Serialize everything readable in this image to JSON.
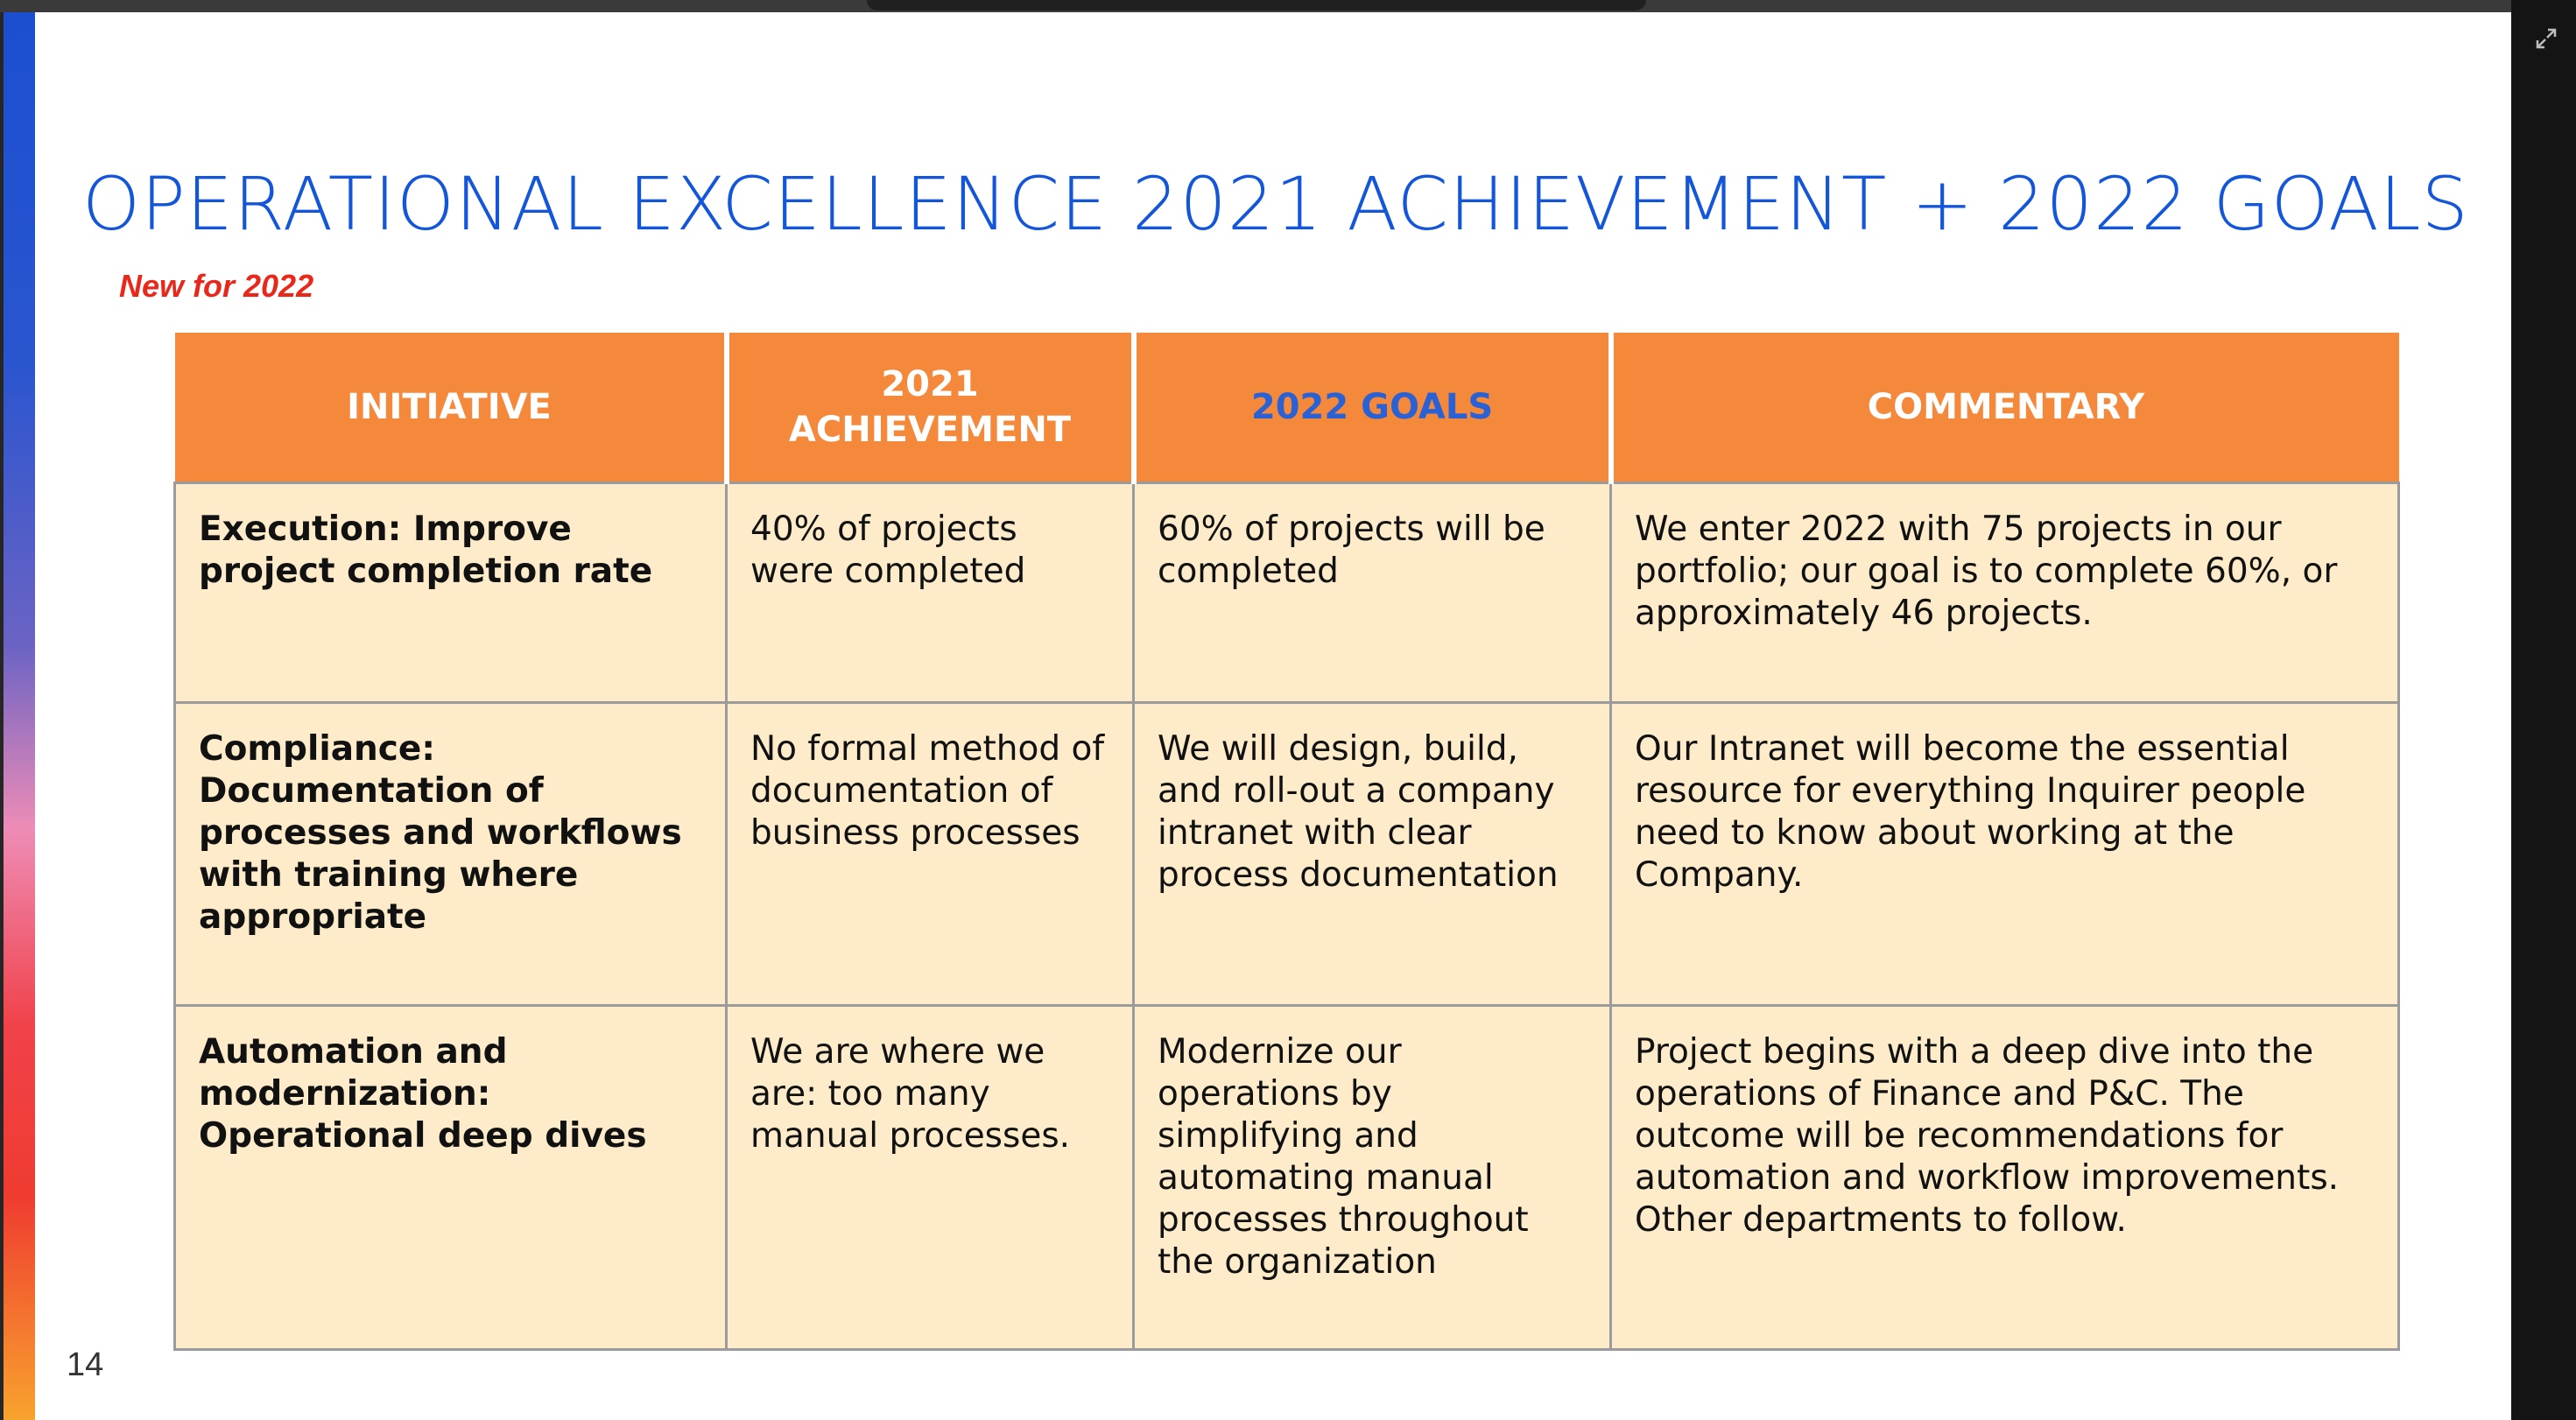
{
  "slide": {
    "title": "OPERATIONAL EXCELLENCE 2021 ACHIEVEMENT + 2022 GOALS",
    "note": "New for 2022",
    "page_number": "14"
  },
  "table": {
    "headers": [
      "INITIATIVE",
      "2021 ACHIEVEMENT",
      "2022 GOALS",
      "COMMENTARY"
    ],
    "rows": [
      {
        "initiative": "Execution: Improve project completion rate",
        "achievement_2021": "40% of projects were completed",
        "goals_2022": "60% of projects will be completed",
        "commentary": "We enter 2022 with 75 projects in our portfolio; our goal is to complete 60%, or approximately 46 projects."
      },
      {
        "initiative": "Compliance: Documentation of processes and workflows with training where appropriate",
        "achievement_2021": "No formal method of documentation of business processes",
        "goals_2022": "We will design, build, and roll-out a company intranet with clear process documentation",
        "commentary": "Our Intranet will become the essential resource for everything Inquirer people need to know about working at the Company."
      },
      {
        "initiative": "Automation and modernization: Operational deep dives",
        "achievement_2021": "We are where we are: too many manual processes.",
        "goals_2022": "Modernize our operations by simplifying and automating manual processes throughout the organization",
        "commentary": "Project begins with a deep dive into the operations of Finance and P&C. The outcome will be recommendations for automation and workflow improvements. Other departments to follow."
      }
    ]
  },
  "colors": {
    "title": "#1456d9",
    "header_bg": "#f4883b",
    "header_goals_text": "#2a62d6",
    "cell_bg": "#fdebc9",
    "note": "#e8281a"
  },
  "icons": {
    "expand": "expand-icon"
  }
}
